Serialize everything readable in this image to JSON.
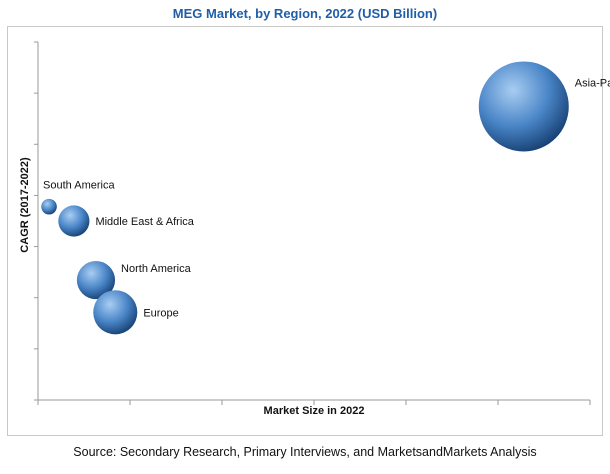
{
  "chart_data": {
    "type": "bubble",
    "title": "MEG Market, by Region, 2022 (USD Billion)",
    "xlabel": "Market Size in 2022",
    "ylabel": "CAGR (2017-2022)",
    "grid": false,
    "legend": "none",
    "points": [
      {
        "label": "Asia-Pacific",
        "x": 88,
        "y": 82,
        "size": 100
      },
      {
        "label": "South America",
        "x": 2,
        "y": 54,
        "size": 3
      },
      {
        "label": "Middle East & Africa",
        "x": 6.5,
        "y": 50,
        "size": 12
      },
      {
        "label": "North America",
        "x": 10.5,
        "y": 33.5,
        "size": 18
      },
      {
        "label": "Europe",
        "x": 14,
        "y": 24.5,
        "size": 24
      }
    ],
    "xlim": [
      0,
      100
    ],
    "ylim": [
      0,
      100
    ],
    "colors": {
      "bubble_light": "#a9cdf2",
      "bubble_mid": "#4a86c8",
      "bubble_dark": "#163f72",
      "title": "#1f5ea8"
    }
  },
  "source": "Source: Secondary Research, Primary Interviews, and MarketsandMarkets Analysis"
}
